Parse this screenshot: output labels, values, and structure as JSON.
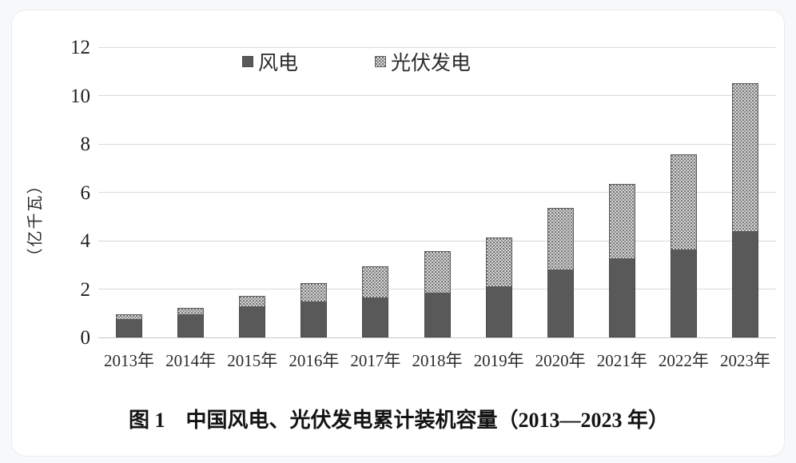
{
  "page": {
    "background": "#f7f8fa",
    "card_background": "#ffffff",
    "card_border": "#ececec"
  },
  "chart_data": {
    "type": "bar",
    "stacked": true,
    "title": "图 1　中国风电、光伏发电累计装机容量（2013—2023 年）",
    "xlabel": "",
    "ylabel": "（亿千瓦）",
    "ylim": [
      0,
      12
    ],
    "yticks": [
      0,
      2,
      4,
      6,
      8,
      10,
      12
    ],
    "grid": "horizontal",
    "gridline_color": "#d9d9d9",
    "legend_position": "top",
    "categories": [
      "2013年",
      "2014年",
      "2015年",
      "2016年",
      "2017年",
      "2018年",
      "2019年",
      "2020年",
      "2021年",
      "2022年",
      "2023年"
    ],
    "series": [
      {
        "name": "风电",
        "style": "solid",
        "color": "#595959",
        "values": [
          0.77,
          0.96,
          1.29,
          1.49,
          1.64,
          1.84,
          2.1,
          2.81,
          3.28,
          3.65,
          4.41
        ]
      },
      {
        "name": "光伏发电",
        "style": "dot-pattern",
        "color": "#dedede",
        "dot_color": "#6f6f6f",
        "values": [
          0.19,
          0.28,
          0.43,
          0.77,
          1.3,
          1.74,
          2.04,
          2.53,
          3.06,
          3.93,
          6.09
        ]
      }
    ],
    "totals": [
      0.96,
      1.24,
      1.72,
      2.26,
      2.94,
      3.58,
      4.14,
      5.34,
      6.34,
      7.58,
      10.5
    ]
  }
}
